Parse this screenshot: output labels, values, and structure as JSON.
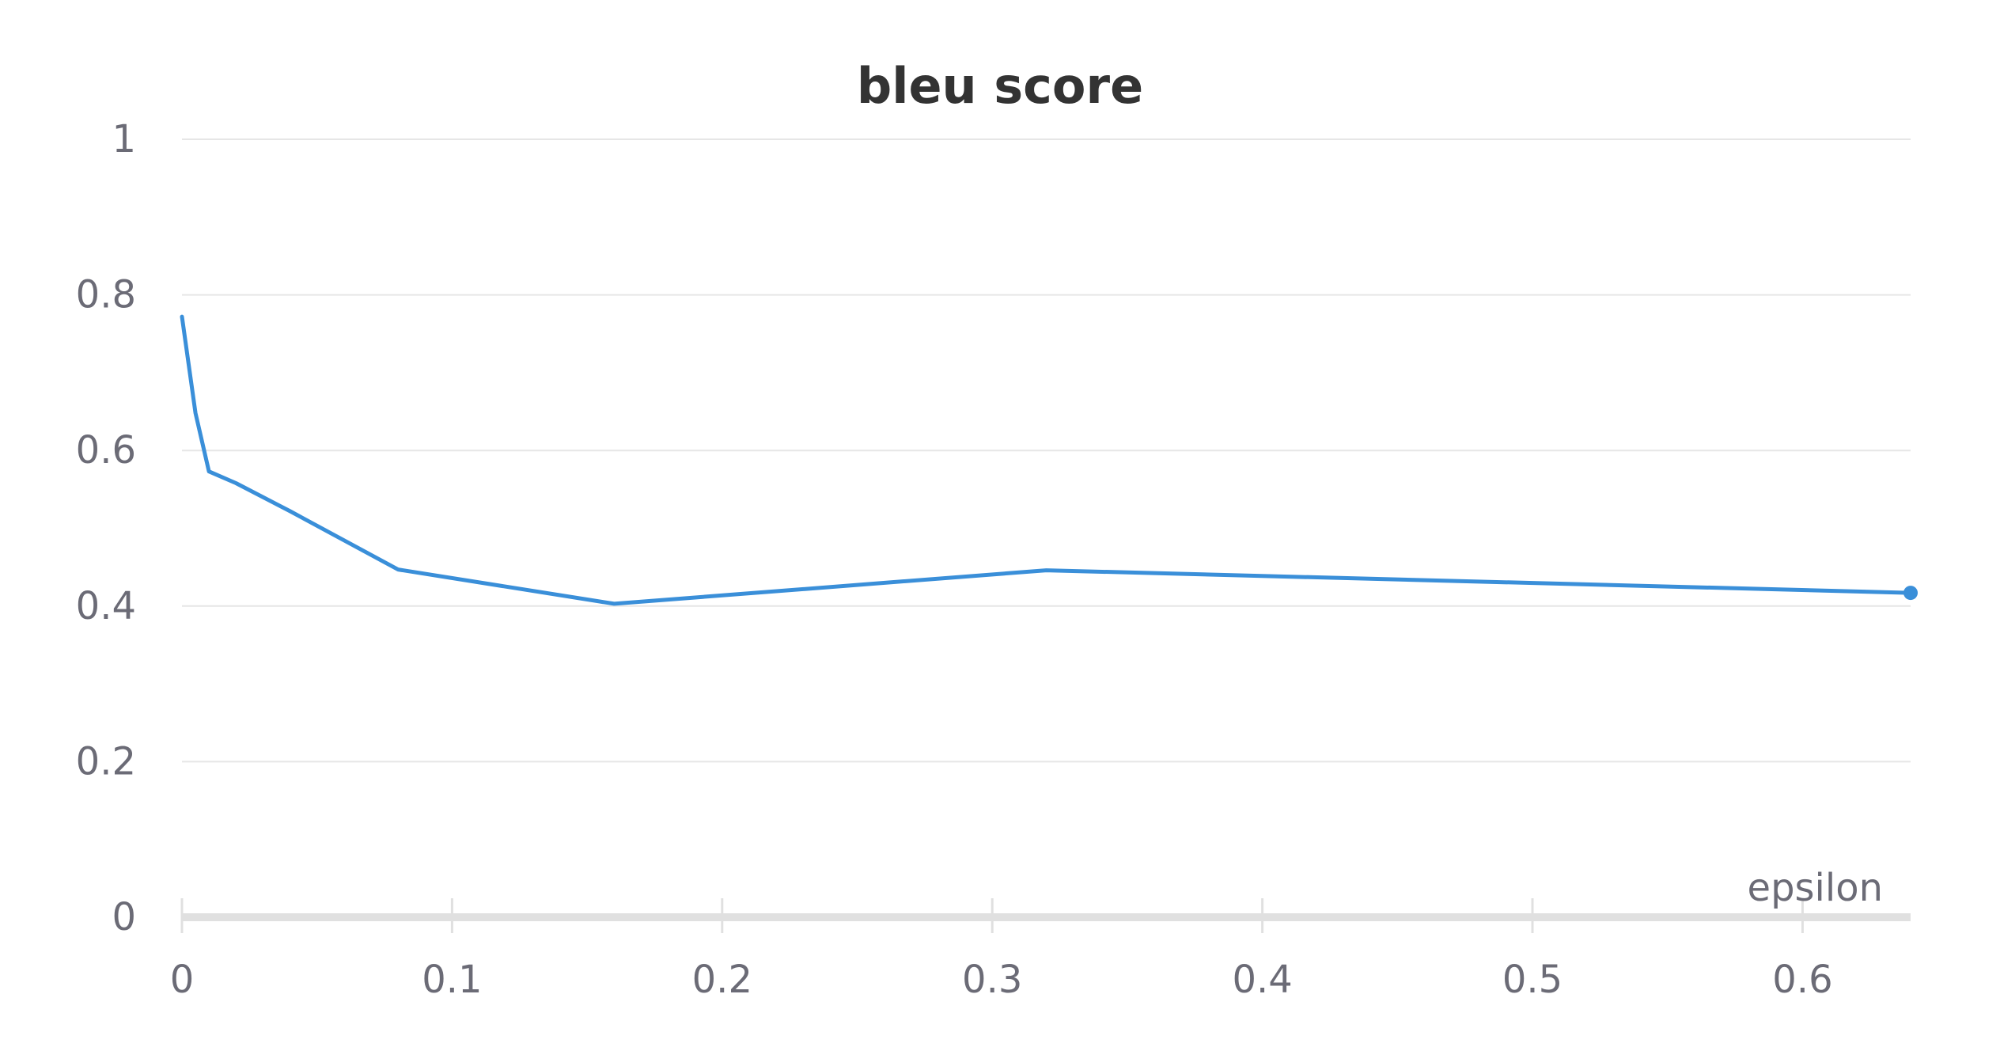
{
  "chart_data": {
    "type": "line",
    "title": "bleu score",
    "xlabel": "epsilon",
    "ylabel": "",
    "xlim": [
      0,
      0.64
    ],
    "ylim": [
      0,
      1
    ],
    "x_ticks": [
      0,
      0.1,
      0.2,
      0.3,
      0.4,
      0.5,
      0.6
    ],
    "x_tick_labels": [
      "0",
      "0.1",
      "0.2",
      "0.3",
      "0.4",
      "0.5",
      "0.6"
    ],
    "y_ticks": [
      0,
      0.2,
      0.4,
      0.6,
      0.8,
      1
    ],
    "y_tick_labels": [
      "0",
      "0.2",
      "0.4",
      "0.6",
      "0.8",
      "1"
    ],
    "grid": true,
    "legend": "none",
    "series": [
      {
        "color": "#3a8fd9",
        "x": [
          0,
          0.005,
          0.01,
          0.02,
          0.04,
          0.08,
          0.16,
          0.32,
          0.64
        ],
        "y": [
          0.772,
          0.648,
          0.573,
          0.558,
          0.522,
          0.447,
          0.403,
          0.446,
          0.417
        ]
      }
    ]
  }
}
